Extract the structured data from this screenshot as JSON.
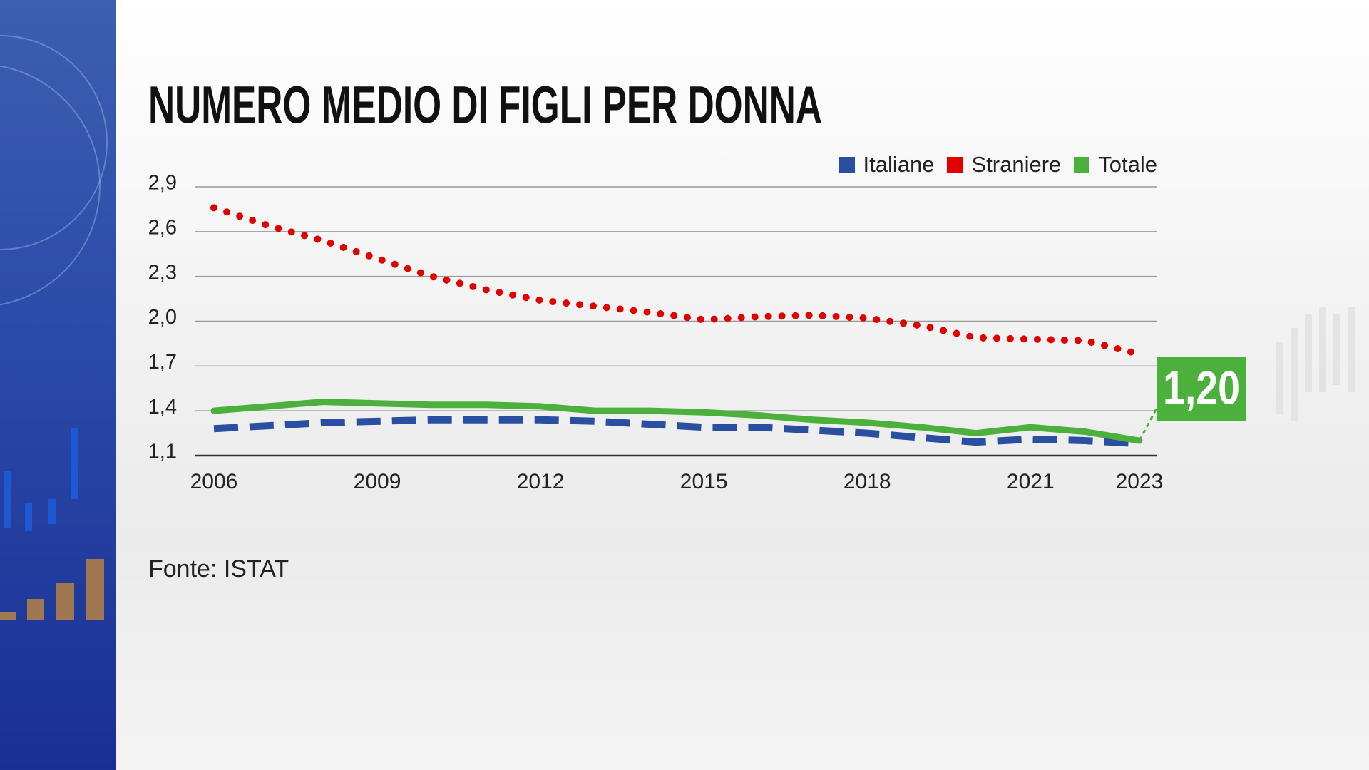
{
  "chart_data": {
    "type": "line",
    "title": "NUMERO MEDIO DI FIGLI PER DONNA",
    "source": "Fonte: ISTAT",
    "x": [
      2006,
      2007,
      2008,
      2009,
      2010,
      2011,
      2012,
      2013,
      2014,
      2015,
      2016,
      2017,
      2018,
      2019,
      2020,
      2021,
      2022,
      2023
    ],
    "xlim": [
      2006,
      2023
    ],
    "xticks": [
      2006,
      2009,
      2012,
      2015,
      2018,
      2021,
      2023
    ],
    "ylim": [
      1.1,
      2.9
    ],
    "yticks": [
      {
        "value": 2.9,
        "label": "2,9"
      },
      {
        "value": 2.6,
        "label": "2,6"
      },
      {
        "value": 2.3,
        "label": "2,3"
      },
      {
        "value": 2.0,
        "label": "2,0"
      },
      {
        "value": 1.7,
        "label": "1,7"
      },
      {
        "value": 1.4,
        "label": "1,4"
      },
      {
        "value": 1.1,
        "label": "1,1"
      }
    ],
    "grid": true,
    "legend": "top-right",
    "series": [
      {
        "name": "Italiane",
        "color": "#2a4ea0",
        "style": "dashed",
        "values": [
          1.28,
          1.3,
          1.32,
          1.33,
          1.34,
          1.34,
          1.34,
          1.33,
          1.31,
          1.29,
          1.29,
          1.27,
          1.25,
          1.22,
          1.19,
          1.21,
          1.2,
          1.18
        ]
      },
      {
        "name": "Straniere",
        "color": "#e00000",
        "style": "dotted",
        "values": [
          2.76,
          2.64,
          2.54,
          2.42,
          2.3,
          2.21,
          2.14,
          2.1,
          2.06,
          2.01,
          2.03,
          2.04,
          2.02,
          1.97,
          1.89,
          1.88,
          1.87,
          1.78
        ]
      },
      {
        "name": "Totale",
        "color": "#4cb03c",
        "style": "solid",
        "values": [
          1.4,
          1.43,
          1.46,
          1.45,
          1.44,
          1.44,
          1.43,
          1.4,
          1.4,
          1.39,
          1.37,
          1.34,
          1.32,
          1.29,
          1.25,
          1.29,
          1.26,
          1.2
        ],
        "value_labels": [
          null,
          null,
          null,
          null,
          null,
          null,
          null,
          null,
          null,
          null,
          null,
          null,
          null,
          null,
          null,
          null,
          null,
          "1,20"
        ]
      }
    ]
  }
}
